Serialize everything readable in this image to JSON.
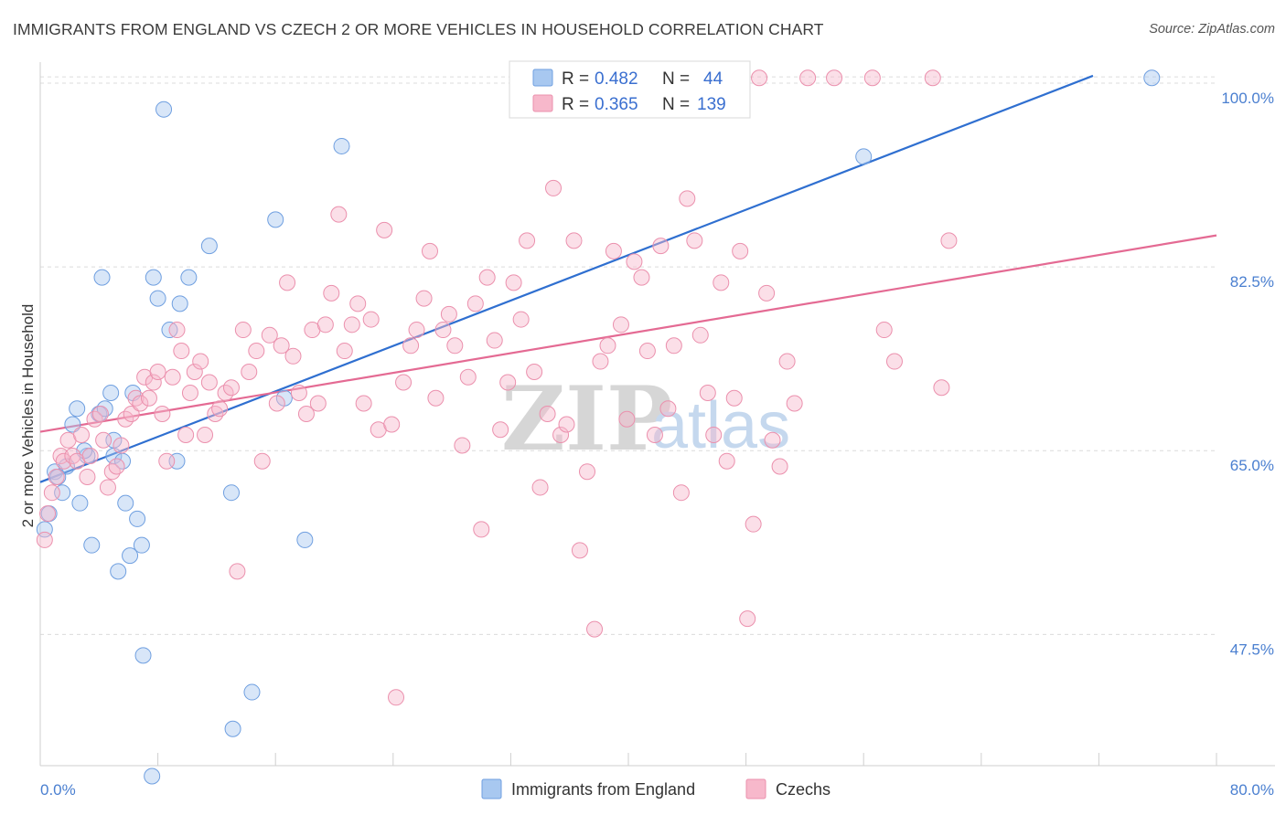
{
  "header": {
    "title": "IMMIGRANTS FROM ENGLAND VS CZECH 2 OR MORE VEHICLES IN HOUSEHOLD CORRELATION CHART",
    "source": "Source: ZipAtlas.com"
  },
  "watermark": {
    "zip": "ZIP",
    "atlas": "atlas"
  },
  "legend": {
    "rows": [
      {
        "r_label": "R = ",
        "r_value": "0.482",
        "n_label": "N = ",
        "n_value": "44",
        "color": "#a8c8f0"
      },
      {
        "r_label": "R = ",
        "r_value": "0.365",
        "n_label": "N = ",
        "n_value": "139",
        "color": "#f7b8cb"
      }
    ]
  },
  "bottom_legend": {
    "items": [
      {
        "label": "Immigrants from England",
        "color": "#a8c8f0"
      },
      {
        "label": "Czechs",
        "color": "#f7b8cb"
      }
    ]
  },
  "chart_data": {
    "type": "scatter",
    "title": "IMMIGRANTS FROM ENGLAND VS CZECH 2 OR MORE VEHICLES IN HOUSEHOLD CORRELATION CHART",
    "xlabel": "",
    "ylabel": "2 or more Vehicles in Household",
    "xlim": [
      0,
      80
    ],
    "ylim": [
      35,
      102
    ],
    "x_ticks": [
      "0.0%",
      "80.0%"
    ],
    "y_ticks": [
      {
        "value": 100,
        "label": "100.0%"
      },
      {
        "value": 82.5,
        "label": "82.5%"
      },
      {
        "value": 65,
        "label": "65.0%"
      },
      {
        "value": 47.5,
        "label": "47.5%"
      }
    ],
    "grid": true,
    "legend_position": "top-center",
    "series": [
      {
        "name": "Immigrants from England",
        "color": "#a8c8f0",
        "stroke": "#6f9fe0",
        "trend": {
          "x": [
            0,
            71.6
          ],
          "y": [
            62.0,
            100.7
          ],
          "color": "#2f6fd0"
        },
        "points": [
          [
            0.3,
            57.5
          ],
          [
            0.6,
            59.0
          ],
          [
            1.0,
            63.0
          ],
          [
            1.5,
            61.0
          ],
          [
            1.8,
            63.5
          ],
          [
            2.2,
            67.5
          ],
          [
            2.7,
            60.0
          ],
          [
            3.2,
            64.5
          ],
          [
            3.5,
            56.0
          ],
          [
            4.0,
            68.5
          ],
          [
            4.2,
            81.5
          ],
          [
            4.4,
            69.0
          ],
          [
            4.8,
            70.5
          ],
          [
            5.0,
            64.5
          ],
          [
            5.3,
            53.5
          ],
          [
            5.6,
            64.0
          ],
          [
            5.8,
            60.0
          ],
          [
            6.1,
            55.0
          ],
          [
            6.3,
            70.5
          ],
          [
            6.6,
            58.5
          ],
          [
            6.9,
            56.0
          ],
          [
            7.0,
            45.5
          ],
          [
            7.6,
            34.0
          ],
          [
            7.7,
            81.5
          ],
          [
            8.0,
            79.5
          ],
          [
            8.4,
            97.5
          ],
          [
            8.8,
            76.5
          ],
          [
            9.3,
            64.0
          ],
          [
            9.5,
            79.0
          ],
          [
            10.1,
            81.5
          ],
          [
            11.5,
            84.5
          ],
          [
            13.0,
            61.0
          ],
          [
            13.1,
            38.5
          ],
          [
            14.4,
            42.0
          ],
          [
            16.0,
            87.0
          ],
          [
            16.6,
            70.0
          ],
          [
            18.0,
            56.5
          ],
          [
            20.5,
            94.0
          ],
          [
            56.0,
            93.0
          ],
          [
            75.6,
            100.5
          ],
          [
            2.5,
            69.0
          ],
          [
            1.2,
            62.5
          ],
          [
            5.0,
            66.0
          ],
          [
            3.0,
            65.0
          ]
        ]
      },
      {
        "name": "Czechs",
        "color": "#f7b8cb",
        "stroke": "#eb90ad",
        "trend": {
          "x": [
            0,
            80
          ],
          "y": [
            66.8,
            85.5
          ],
          "color": "#e46a93"
        },
        "points": [
          [
            0.3,
            56.5
          ],
          [
            0.5,
            59.0
          ],
          [
            0.8,
            61.0
          ],
          [
            1.1,
            62.5
          ],
          [
            1.4,
            64.5
          ],
          [
            1.6,
            64.0
          ],
          [
            1.9,
            66.0
          ],
          [
            2.2,
            64.5
          ],
          [
            2.5,
            64.0
          ],
          [
            2.8,
            66.5
          ],
          [
            3.2,
            62.5
          ],
          [
            3.4,
            64.5
          ],
          [
            3.7,
            68.0
          ],
          [
            4.1,
            68.5
          ],
          [
            4.3,
            66.0
          ],
          [
            4.6,
            61.5
          ],
          [
            4.9,
            63.0
          ],
          [
            5.2,
            63.5
          ],
          [
            5.5,
            65.5
          ],
          [
            5.8,
            68.0
          ],
          [
            6.2,
            68.5
          ],
          [
            6.5,
            70.0
          ],
          [
            6.8,
            69.5
          ],
          [
            7.1,
            72.0
          ],
          [
            7.4,
            70.0
          ],
          [
            7.7,
            71.5
          ],
          [
            8.0,
            72.5
          ],
          [
            8.3,
            68.5
          ],
          [
            8.6,
            64.0
          ],
          [
            9.0,
            72.0
          ],
          [
            9.3,
            76.5
          ],
          [
            9.6,
            74.5
          ],
          [
            9.9,
            66.5
          ],
          [
            10.2,
            70.5
          ],
          [
            10.5,
            72.5
          ],
          [
            10.9,
            73.5
          ],
          [
            11.2,
            66.5
          ],
          [
            11.5,
            71.5
          ],
          [
            11.9,
            68.5
          ],
          [
            12.2,
            69.0
          ],
          [
            12.6,
            70.5
          ],
          [
            13.0,
            71.0
          ],
          [
            13.4,
            53.5
          ],
          [
            13.8,
            76.5
          ],
          [
            14.2,
            72.5
          ],
          [
            14.7,
            74.5
          ],
          [
            15.1,
            64.0
          ],
          [
            15.6,
            76.0
          ],
          [
            16.1,
            69.5
          ],
          [
            16.4,
            75.0
          ],
          [
            16.8,
            81.0
          ],
          [
            17.2,
            74.0
          ],
          [
            17.6,
            70.5
          ],
          [
            18.1,
            68.5
          ],
          [
            18.5,
            76.5
          ],
          [
            18.9,
            69.5
          ],
          [
            19.4,
            77.0
          ],
          [
            19.8,
            80.0
          ],
          [
            20.3,
            87.5
          ],
          [
            20.7,
            74.5
          ],
          [
            21.2,
            77.0
          ],
          [
            21.6,
            79.0
          ],
          [
            22.0,
            69.5
          ],
          [
            22.5,
            77.5
          ],
          [
            23.0,
            67.0
          ],
          [
            23.4,
            86.0
          ],
          [
            23.9,
            67.5
          ],
          [
            24.2,
            41.5
          ],
          [
            24.7,
            71.5
          ],
          [
            25.2,
            75.0
          ],
          [
            25.6,
            76.5
          ],
          [
            26.1,
            79.5
          ],
          [
            26.5,
            84.0
          ],
          [
            26.9,
            70.0
          ],
          [
            27.4,
            76.5
          ],
          [
            27.8,
            78.0
          ],
          [
            28.2,
            75.0
          ],
          [
            28.7,
            65.5
          ],
          [
            29.1,
            72.0
          ],
          [
            29.6,
            79.0
          ],
          [
            30.0,
            57.5
          ],
          [
            30.4,
            81.5
          ],
          [
            30.9,
            75.5
          ],
          [
            31.3,
            67.0
          ],
          [
            31.8,
            71.5
          ],
          [
            32.2,
            81.0
          ],
          [
            32.7,
            77.5
          ],
          [
            33.1,
            85.0
          ],
          [
            33.6,
            72.5
          ],
          [
            34.0,
            61.5
          ],
          [
            34.5,
            68.5
          ],
          [
            34.9,
            90.0
          ],
          [
            35.4,
            66.5
          ],
          [
            35.8,
            67.5
          ],
          [
            36.3,
            85.0
          ],
          [
            36.7,
            55.5
          ],
          [
            37.2,
            63.0
          ],
          [
            37.7,
            48.0
          ],
          [
            38.1,
            73.5
          ],
          [
            38.6,
            75.0
          ],
          [
            39.0,
            84.0
          ],
          [
            39.5,
            77.0
          ],
          [
            39.9,
            68.0
          ],
          [
            40.4,
            83.0
          ],
          [
            40.9,
            81.5
          ],
          [
            41.3,
            74.5
          ],
          [
            41.8,
            66.5
          ],
          [
            42.2,
            84.5
          ],
          [
            42.7,
            69.0
          ],
          [
            43.1,
            75.0
          ],
          [
            43.6,
            61.0
          ],
          [
            44.0,
            89.0
          ],
          [
            44.5,
            85.0
          ],
          [
            44.9,
            76.0
          ],
          [
            45.4,
            70.5
          ],
          [
            45.8,
            66.5
          ],
          [
            46.3,
            81.0
          ],
          [
            46.7,
            64.0
          ],
          [
            47.2,
            70.0
          ],
          [
            47.6,
            84.0
          ],
          [
            48.1,
            49.0
          ],
          [
            48.5,
            58.0
          ],
          [
            48.9,
            100.5
          ],
          [
            49.4,
            80.0
          ],
          [
            49.8,
            66.0
          ],
          [
            50.3,
            63.5
          ],
          [
            50.8,
            73.5
          ],
          [
            51.3,
            69.5
          ],
          [
            52.2,
            100.5
          ],
          [
            54.0,
            100.5
          ],
          [
            56.6,
            100.5
          ],
          [
            57.4,
            76.5
          ],
          [
            58.1,
            73.5
          ],
          [
            60.7,
            100.5
          ],
          [
            61.3,
            71.0
          ],
          [
            61.8,
            85.0
          ]
        ]
      }
    ]
  }
}
